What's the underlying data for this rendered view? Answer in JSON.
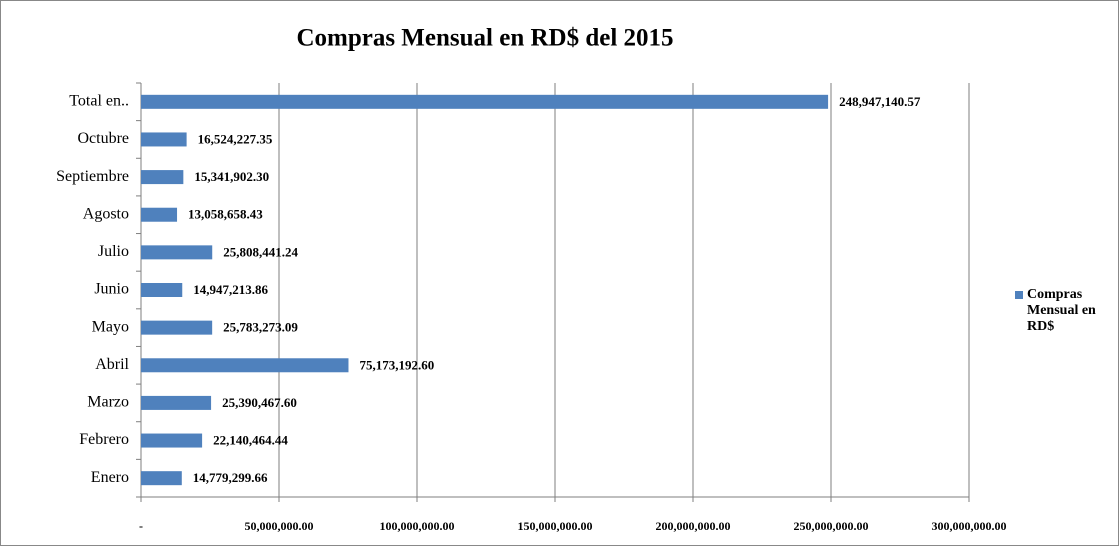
{
  "chart_data": {
    "type": "barh",
    "title": "Compras Mensual en RD$ del 2015",
    "categories": [
      "Enero",
      "Febrero",
      "Marzo",
      "Abril",
      "Mayo",
      "Junio",
      "Julio",
      "Agosto",
      "Septiembre",
      "Octubre",
      "Total en.."
    ],
    "series": [
      {
        "name": "Compras Mensual en RD$",
        "color": "#4f81bd",
        "values": [
          14779299.66,
          22140464.44,
          25390467.6,
          75173192.6,
          25783273.09,
          14947213.86,
          25808441.24,
          13058658.43,
          15341902.3,
          16524227.35,
          248947140.57
        ],
        "value_labels": [
          "14,779,299.66",
          "22,140,464.44",
          "25,390,467.60",
          "75,173,192.60",
          "25,783,273.09",
          "14,947,213.86",
          "25,808,441.24",
          "13,058,658.43",
          "15,341,902.30",
          "16,524,227.35",
          "248,947,140.57"
        ]
      }
    ],
    "xlim": [
      0,
      300000000
    ],
    "xticks": [
      {
        "value": 0,
        "label": "-"
      },
      {
        "value": 50000000,
        "label": "50,000,000.00"
      },
      {
        "value": 100000000,
        "label": "100,000,000.00"
      },
      {
        "value": 150000000,
        "label": "150,000,000.00"
      },
      {
        "value": 200000000,
        "label": "200,000,000.00"
      },
      {
        "value": 250000000,
        "label": "250,000,000.00"
      },
      {
        "value": 300000000,
        "label": "300,000,000.00"
      }
    ],
    "grid": true,
    "legend": "right"
  }
}
